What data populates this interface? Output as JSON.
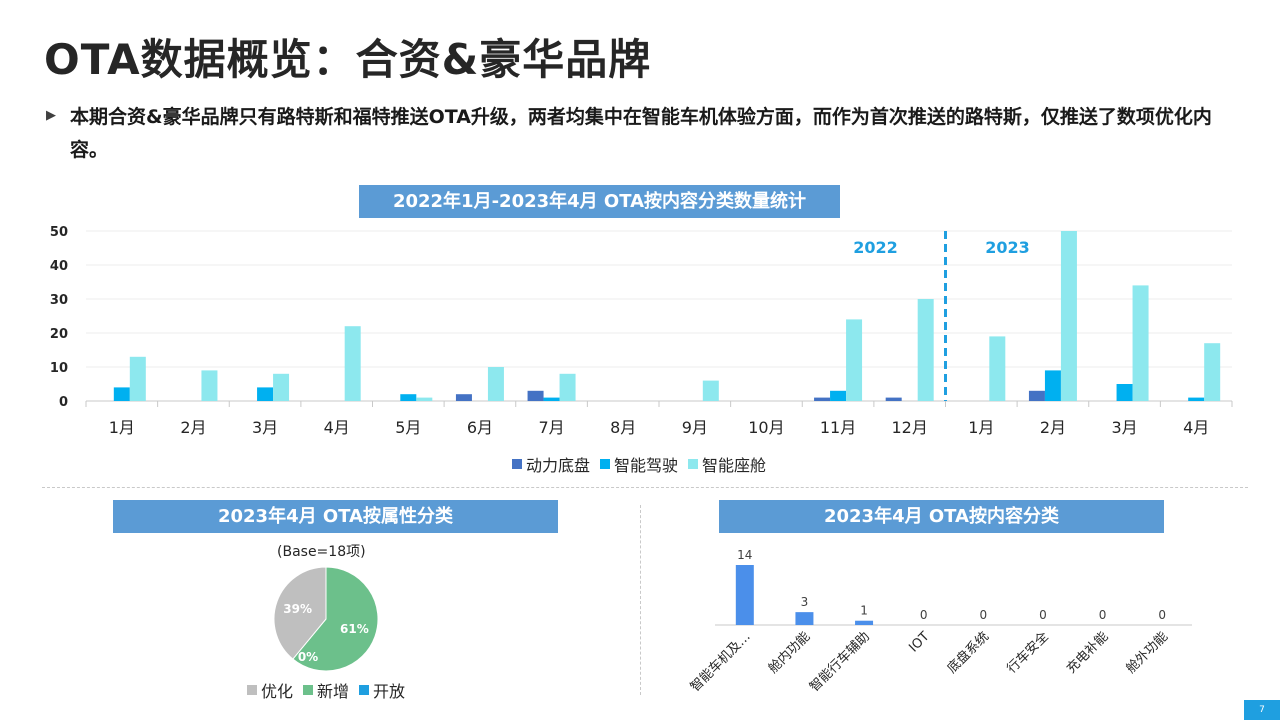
{
  "page": {
    "title": "OTA数据概览：合资&豪华品牌",
    "bullet": "本期合资&豪华品牌只有路特斯和福特推送OTA升级，两者均集中在智能车机体验方面，而作为首次推送的路特斯，仅推送了数项优化内容。",
    "page_number": "7"
  },
  "chart_data": [
    {
      "type": "bar",
      "title": "2022年1月-2023年4月 OTA按内容分类数量统计",
      "categories": [
        "1月",
        "2月",
        "3月",
        "4月",
        "5月",
        "6月",
        "7月",
        "8月",
        "9月",
        "10月",
        "11月",
        "12月",
        "1月",
        "2月",
        "3月",
        "4月"
      ],
      "series": [
        {
          "name": "动力底盘",
          "color": "#4472c4",
          "values": [
            0,
            0,
            0,
            0,
            0,
            2,
            3,
            0,
            0,
            0,
            1,
            1,
            0,
            3,
            0,
            0
          ]
        },
        {
          "name": "智能驾驶",
          "color": "#00b0f0",
          "values": [
            4,
            0,
            4,
            0,
            2,
            0,
            1,
            0,
            0,
            0,
            3,
            0,
            0,
            9,
            5,
            1
          ]
        },
        {
          "name": "智能座舱",
          "color": "#8de8ee",
          "values": [
            13,
            9,
            8,
            22,
            1,
            10,
            8,
            0,
            6,
            0,
            24,
            30,
            19,
            50,
            34,
            17
          ]
        }
      ],
      "ylim": [
        0,
        50
      ],
      "yticks": [
        0,
        10,
        20,
        30,
        40,
        50
      ],
      "year_labels": [
        "2022",
        "2023"
      ],
      "year_color": "#1f9fe0",
      "grid": true,
      "legend_position": "bottom"
    },
    {
      "type": "pie",
      "title": "2023年4月 OTA按属性分类",
      "subtitle": "(Base=18项)",
      "slices": [
        {
          "name": "优化",
          "value": 39,
          "label": "39%",
          "color": "#bfbfbf"
        },
        {
          "name": "新增",
          "value": 61,
          "label": "61%",
          "color": "#6cc08b"
        },
        {
          "name": "开放",
          "value": 0,
          "label": "0%",
          "color": "#1f9fe0"
        }
      ],
      "legend_position": "bottom"
    },
    {
      "type": "bar",
      "title": "2023年4月 OTA按内容分类",
      "categories": [
        "智能车机及…",
        "舱内功能",
        "智能行车辅助",
        "IOT",
        "底盘系统",
        "行车安全",
        "充电补能",
        "舱外功能"
      ],
      "values": [
        14,
        3,
        1,
        0,
        0,
        0,
        0,
        0
      ],
      "color": "#4b8fea",
      "ylim": [
        0,
        14
      ],
      "grid": false
    }
  ]
}
